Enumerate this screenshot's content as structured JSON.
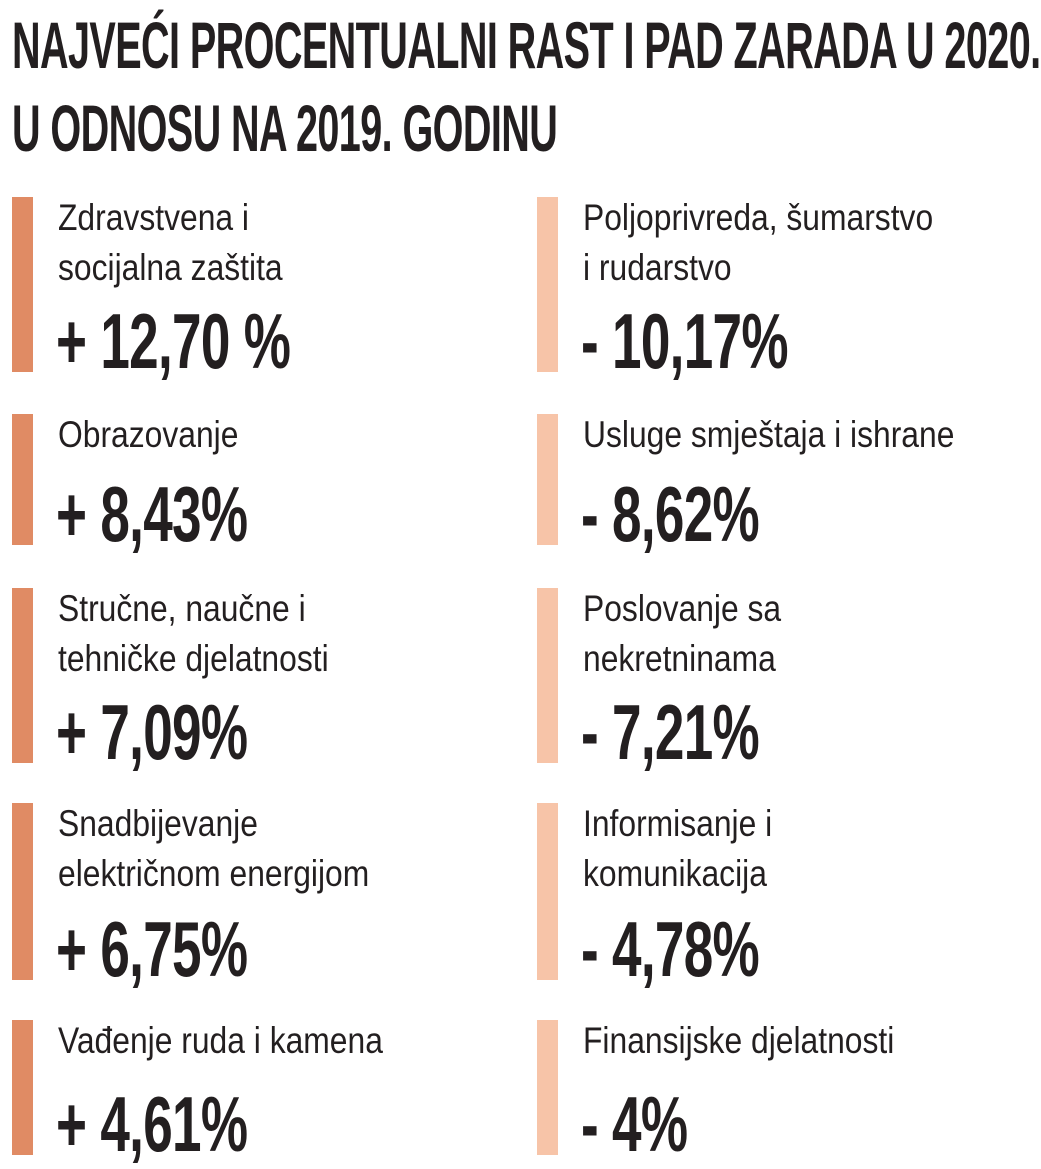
{
  "title": {
    "line1": "NAJVEĆI PROCENTUALNI RAST I PAD ZARADA U 2020.",
    "line2": "U ODNOSU NA 2019. GODINU"
  },
  "colors": {
    "increase_bar": "#e08b64",
    "decrease_bar": "#f7c4a8",
    "text": "#231f20"
  },
  "increases": [
    {
      "label1": "Zdravstvena i",
      "label2": "socijalna zaštita",
      "value": "+ 12,70 %"
    },
    {
      "label1": "Obrazovanje",
      "label2": "",
      "value": "+ 8,43%"
    },
    {
      "label1": "Stručne, naučne i",
      "label2": "tehničke djelatnosti",
      "value": "+ 7,09%"
    },
    {
      "label1": "Snadbijevanje",
      "label2": "električnom energijom",
      "value": "+ 6,75%"
    },
    {
      "label1": "Vađenje ruda i kamena",
      "label2": "",
      "value": "+ 4,61%"
    }
  ],
  "decreases": [
    {
      "label1": "Poljoprivreda, šumarstvo",
      "label2": "i rudarstvo",
      "value": "- 10,17%"
    },
    {
      "label1": "Usluge smještaja i ishrane",
      "label2": "",
      "value": "- 8,62%"
    },
    {
      "label1": "Poslovanje sa",
      "label2": "nekretninama",
      "value": "- 7,21%"
    },
    {
      "label1": "Informisanje i",
      "label2": "komunikacija",
      "value": " - 4,78%"
    },
    {
      "label1": "Finansijske djelatnosti",
      "label2": "",
      "value": "- 4%"
    }
  ]
}
